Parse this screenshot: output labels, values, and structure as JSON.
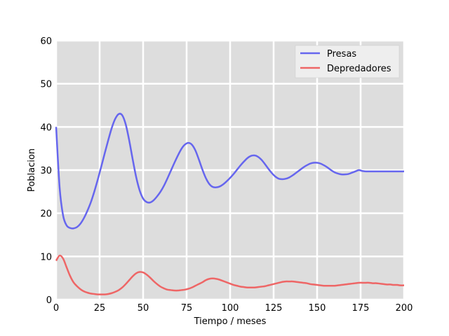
{
  "chart_data": {
    "type": "line",
    "title": "",
    "xlabel": "Tiempo / meses",
    "ylabel": "Poblacion",
    "xlim": [
      0,
      200
    ],
    "ylim": [
      0,
      60
    ],
    "xticks": [
      0,
      25,
      50,
      75,
      100,
      125,
      150,
      175,
      200
    ],
    "yticks": [
      0,
      10,
      20,
      30,
      40,
      50,
      60
    ],
    "grid": true,
    "legend_position": "top-right",
    "x": [
      0,
      2,
      4,
      6,
      8,
      10,
      12,
      14,
      16,
      18,
      20,
      22,
      24,
      26,
      28,
      30,
      32,
      34,
      36,
      38,
      40,
      42,
      44,
      46,
      48,
      50,
      52,
      54,
      56,
      58,
      60,
      62,
      64,
      66,
      68,
      70,
      72,
      74,
      76,
      78,
      80,
      82,
      84,
      86,
      88,
      90,
      92,
      94,
      96,
      98,
      100,
      102,
      104,
      106,
      108,
      110,
      112,
      114,
      116,
      118,
      120,
      122,
      124,
      126,
      128,
      130,
      132,
      134,
      136,
      138,
      140,
      142,
      144,
      146,
      148,
      150,
      152,
      154,
      156,
      158,
      160,
      162,
      164,
      166,
      168,
      170,
      172,
      174,
      176,
      178,
      180,
      182,
      184,
      186,
      188,
      190,
      192,
      194,
      196,
      198,
      200
    ],
    "series": [
      {
        "name": "Presas",
        "color": "#6666ee",
        "values": [
          40.0,
          26.0,
          19.5,
          17.2,
          16.6,
          16.5,
          16.8,
          17.6,
          18.9,
          20.6,
          22.6,
          25.1,
          27.9,
          30.9,
          34.0,
          37.0,
          39.8,
          41.9,
          43.0,
          42.7,
          40.6,
          36.9,
          32.5,
          28.4,
          25.3,
          23.4,
          22.6,
          22.5,
          23.0,
          23.9,
          25.0,
          26.4,
          28.1,
          29.9,
          31.7,
          33.4,
          34.9,
          35.9,
          36.3,
          35.9,
          34.6,
          32.5,
          30.2,
          28.2,
          26.8,
          26.1,
          26.0,
          26.2,
          26.7,
          27.4,
          28.2,
          29.1,
          30.1,
          31.1,
          32.0,
          32.8,
          33.3,
          33.4,
          33.1,
          32.4,
          31.4,
          30.3,
          29.3,
          28.5,
          28.0,
          27.9,
          28.0,
          28.3,
          28.8,
          29.4,
          30.0,
          30.6,
          31.1,
          31.5,
          31.7,
          31.7,
          31.5,
          31.1,
          30.6,
          30.0,
          29.5,
          29.2,
          29.0,
          29.0,
          29.1,
          29.4,
          29.7,
          30.0,
          29.8,
          29.7,
          29.7,
          29.7,
          29.7,
          29.7,
          29.7,
          29.7,
          29.7,
          29.7,
          29.7,
          29.7,
          29.7
        ]
      },
      {
        "name": "Depredadores",
        "color": "#ee6666",
        "values": [
          9.0,
          10.2,
          9.5,
          7.5,
          5.5,
          4.0,
          3.1,
          2.4,
          1.9,
          1.6,
          1.4,
          1.3,
          1.2,
          1.2,
          1.2,
          1.3,
          1.5,
          1.8,
          2.2,
          2.8,
          3.6,
          4.5,
          5.4,
          6.1,
          6.4,
          6.3,
          5.8,
          5.1,
          4.3,
          3.6,
          3.0,
          2.6,
          2.3,
          2.2,
          2.1,
          2.1,
          2.2,
          2.3,
          2.5,
          2.8,
          3.2,
          3.6,
          4.0,
          4.5,
          4.8,
          4.9,
          4.8,
          4.6,
          4.3,
          4.0,
          3.7,
          3.4,
          3.2,
          3.0,
          2.9,
          2.8,
          2.8,
          2.8,
          2.9,
          3.0,
          3.1,
          3.3,
          3.5,
          3.7,
          3.9,
          4.1,
          4.2,
          4.2,
          4.2,
          4.1,
          4.0,
          3.9,
          3.8,
          3.6,
          3.5,
          3.4,
          3.3,
          3.2,
          3.2,
          3.2,
          3.2,
          3.3,
          3.4,
          3.5,
          3.6,
          3.7,
          3.8,
          3.9,
          3.9,
          3.9,
          3.9,
          3.8,
          3.8,
          3.7,
          3.6,
          3.5,
          3.5,
          3.4,
          3.4,
          3.3,
          3.3
        ]
      }
    ]
  }
}
